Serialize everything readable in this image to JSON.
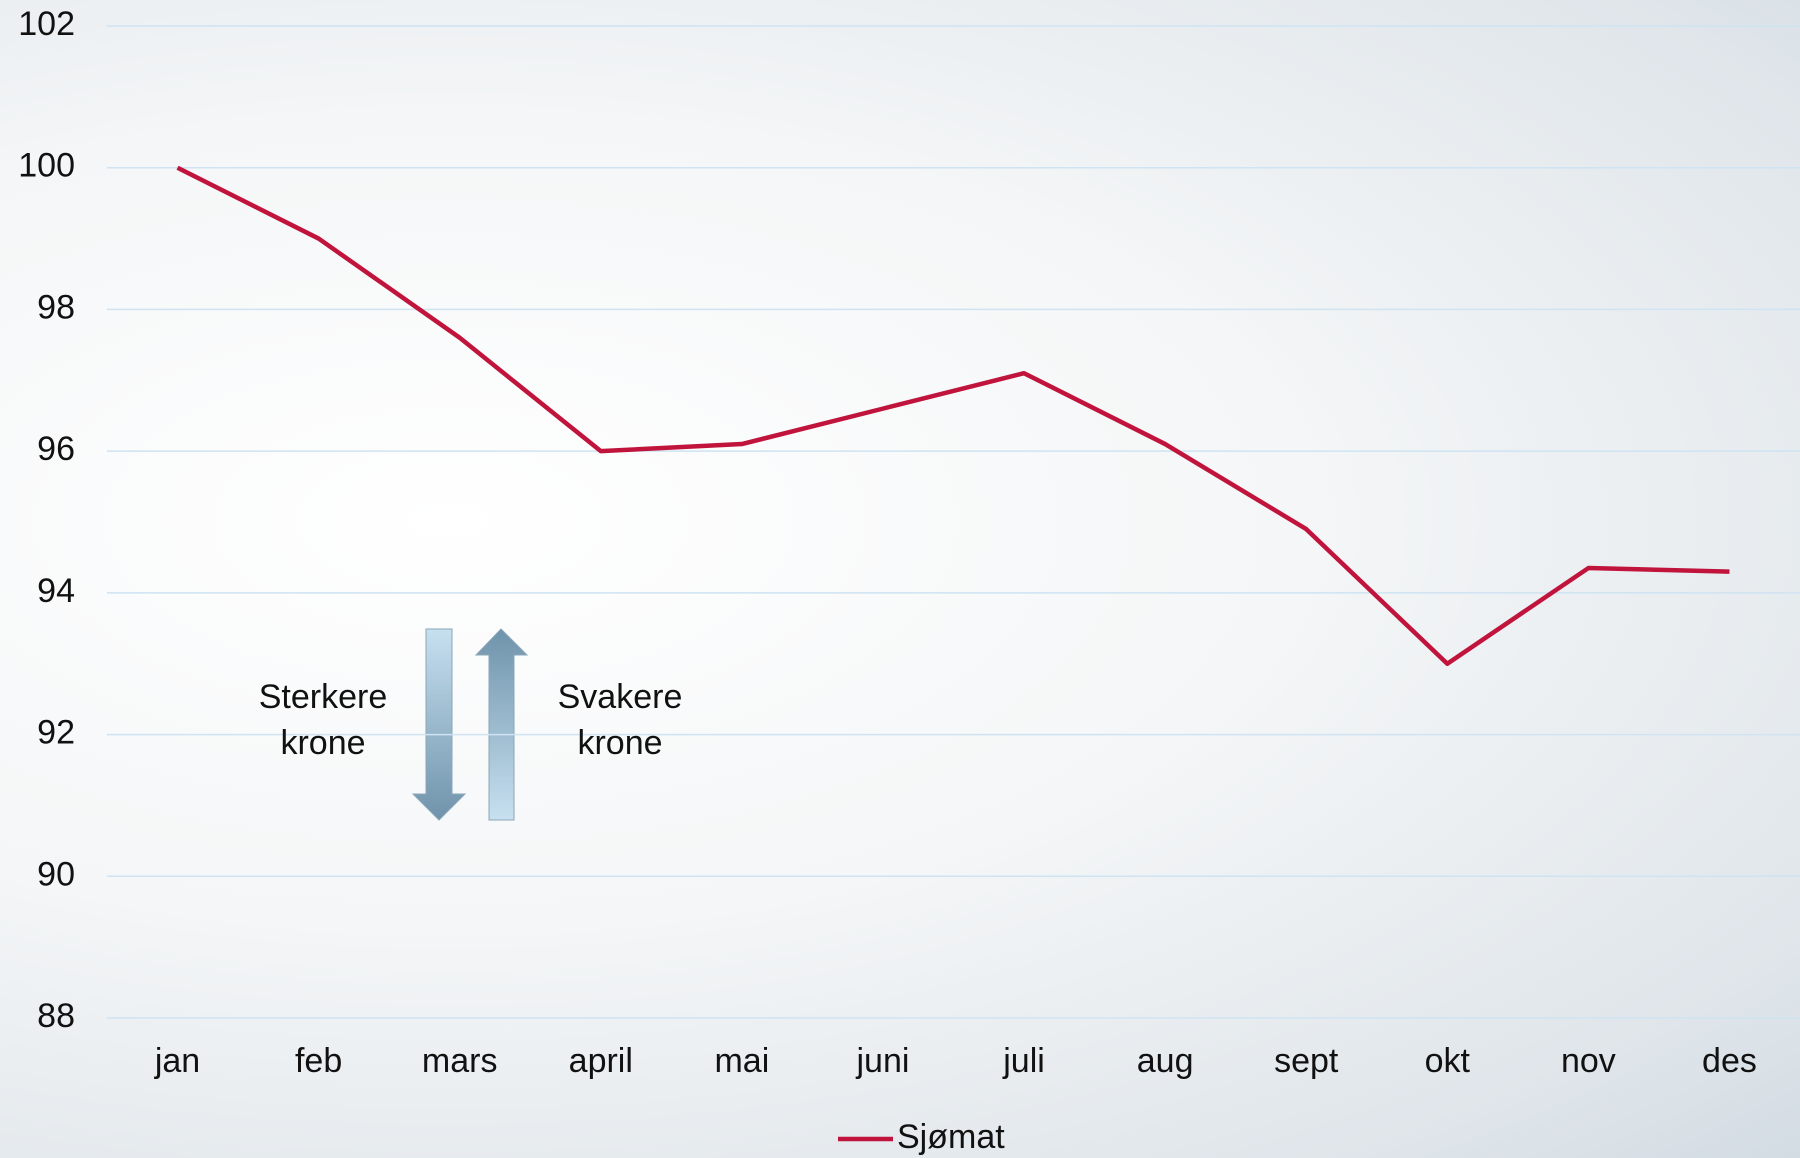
{
  "chart_data": {
    "type": "line",
    "categories": [
      "jan",
      "feb",
      "mars",
      "april",
      "mai",
      "juni",
      "juli",
      "aug",
      "sept",
      "okt",
      "nov",
      "des"
    ],
    "series": [
      {
        "name": "Sjømat",
        "color": "#c0143c",
        "values": [
          100,
          99.0,
          97.6,
          96.0,
          96.1,
          96.6,
          97.1,
          96.1,
          94.9,
          93.0,
          94.35,
          94.3
        ]
      }
    ],
    "ylim": [
      88,
      102
    ],
    "yticks": [
      88,
      90,
      92,
      94,
      96,
      98,
      100,
      102
    ],
    "grid": true,
    "annotations": [
      "Sterkere krone",
      "Svakere krone"
    ],
    "legend": "bottom"
  }
}
